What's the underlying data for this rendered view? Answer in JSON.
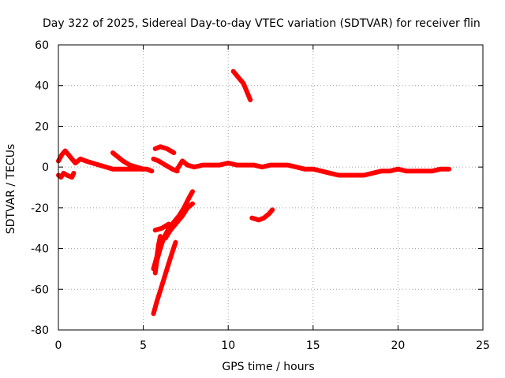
{
  "chart_data": {
    "type": "scatter",
    "title": "Day 322 of 2025, Sidereal Day-to-day VTEC variation (SDTVAR) for receiver flin",
    "xlabel": "GPS time / hours",
    "ylabel": "SDTVAR / TECUs",
    "xlim": [
      0,
      25
    ],
    "ylim": [
      -80,
      60
    ],
    "xticks": [
      0,
      5,
      10,
      15,
      20,
      25
    ],
    "yticks": [
      -80,
      -60,
      -40,
      -20,
      0,
      20,
      40,
      60
    ],
    "grid": true,
    "color": "#ff0000",
    "series": [
      {
        "name": "main-track",
        "points": [
          [
            0,
            -4
          ],
          [
            0.15,
            -5
          ],
          [
            0.3,
            -3
          ],
          [
            0.5,
            -4
          ],
          [
            0.8,
            -5
          ],
          [
            0.9,
            -3
          ]
        ]
      },
      {
        "name": "main-track-2",
        "points": [
          [
            0,
            3
          ],
          [
            0.2,
            6
          ],
          [
            0.4,
            8
          ],
          [
            0.6,
            6
          ],
          [
            0.8,
            4
          ],
          [
            1,
            2
          ],
          [
            1.3,
            4
          ],
          [
            1.6,
            3
          ],
          [
            2,
            2
          ],
          [
            2.4,
            1
          ],
          [
            2.8,
            0
          ],
          [
            3.2,
            -1
          ],
          [
            3.6,
            -1
          ],
          [
            4,
            -1
          ],
          [
            4.4,
            -1
          ],
          [
            4.8,
            -1
          ],
          [
            5.2,
            -1
          ],
          [
            5.5,
            -2
          ]
        ]
      },
      {
        "name": "arc-a",
        "points": [
          [
            3.2,
            7
          ],
          [
            3.5,
            5
          ],
          [
            3.8,
            3
          ],
          [
            4.2,
            1
          ],
          [
            4.6,
            0
          ],
          [
            5,
            -1
          ]
        ]
      },
      {
        "name": "arc-b",
        "points": [
          [
            5.7,
            9
          ],
          [
            6,
            10
          ],
          [
            6.4,
            9
          ],
          [
            6.8,
            7
          ]
        ]
      },
      {
        "name": "arc-c",
        "points": [
          [
            5.6,
            4
          ],
          [
            5.9,
            3
          ],
          [
            6.3,
            1
          ],
          [
            6.7,
            -1
          ],
          [
            7,
            -2
          ]
        ]
      },
      {
        "name": "main-track-3",
        "points": [
          [
            7,
            -1
          ],
          [
            7.3,
            3
          ],
          [
            7.6,
            1
          ],
          [
            8,
            0
          ],
          [
            8.5,
            1
          ],
          [
            9,
            1
          ],
          [
            9.5,
            1
          ],
          [
            10,
            2
          ],
          [
            10.5,
            1
          ],
          [
            11,
            1
          ],
          [
            11.5,
            1
          ],
          [
            12,
            0
          ],
          [
            12.5,
            1
          ],
          [
            13,
            1
          ],
          [
            13.5,
            1
          ],
          [
            14,
            0
          ],
          [
            14.5,
            -1
          ],
          [
            15,
            -1
          ],
          [
            15.5,
            -2
          ],
          [
            16,
            -3
          ],
          [
            16.5,
            -4
          ],
          [
            17,
            -4
          ],
          [
            17.5,
            -4
          ],
          [
            18,
            -4
          ],
          [
            18.5,
            -3
          ],
          [
            19,
            -2
          ],
          [
            19.5,
            -2
          ],
          [
            20,
            -1
          ],
          [
            20.5,
            -2
          ],
          [
            21,
            -2
          ],
          [
            21.5,
            -2
          ],
          [
            22,
            -2
          ],
          [
            22.5,
            -1
          ],
          [
            23,
            -1
          ]
        ]
      },
      {
        "name": "arc-d",
        "points": [
          [
            10.3,
            47
          ],
          [
            10.6,
            44
          ],
          [
            10.9,
            41
          ],
          [
            11.1,
            37
          ],
          [
            11.3,
            33
          ]
        ]
      },
      {
        "name": "arc-e",
        "points": [
          [
            11.4,
            -25
          ],
          [
            11.8,
            -26
          ],
          [
            12.1,
            -25
          ],
          [
            12.4,
            -23
          ],
          [
            12.6,
            -21
          ]
        ]
      },
      {
        "name": "descent-1",
        "points": [
          [
            5.7,
            -52
          ],
          [
            5.8,
            -46
          ],
          [
            6,
            -40
          ],
          [
            6.2,
            -35
          ],
          [
            6.5,
            -30
          ],
          [
            6.8,
            -27
          ],
          [
            7.1,
            -24
          ],
          [
            7.4,
            -20
          ],
          [
            7.7,
            -15
          ],
          [
            7.9,
            -12
          ]
        ]
      },
      {
        "name": "descent-2",
        "points": [
          [
            5.6,
            -50
          ],
          [
            5.8,
            -44
          ],
          [
            5.9,
            -38
          ],
          [
            6,
            -34
          ]
        ]
      },
      {
        "name": "descent-3",
        "points": [
          [
            5.6,
            -72
          ],
          [
            5.8,
            -66
          ],
          [
            6.1,
            -58
          ],
          [
            6.4,
            -50
          ],
          [
            6.7,
            -42
          ],
          [
            6.9,
            -37
          ]
        ]
      },
      {
        "name": "descent-4",
        "points": [
          [
            6.3,
            -35
          ],
          [
            6.6,
            -31
          ],
          [
            7,
            -27
          ],
          [
            7.3,
            -24
          ],
          [
            7.6,
            -20
          ],
          [
            7.9,
            -18
          ]
        ]
      },
      {
        "name": "descent-5",
        "points": [
          [
            5.7,
            -31
          ],
          [
            6.1,
            -30
          ],
          [
            6.5,
            -28
          ]
        ]
      }
    ]
  }
}
